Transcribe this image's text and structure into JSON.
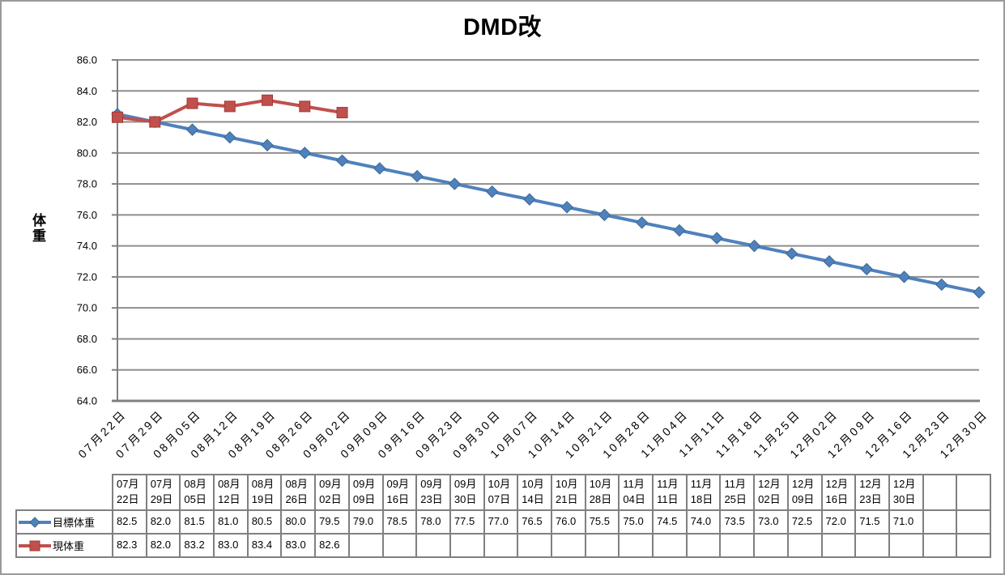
{
  "page": {
    "background": "#FFFFFF",
    "border_color": "#9A9A9A"
  },
  "chart_data": {
    "type": "line",
    "title": "DMD改",
    "ylabel": "体重",
    "xlabel": "",
    "ylim": [
      64.0,
      86.0
    ],
    "ytick_step": 2.0,
    "yticks": [
      "86.0",
      "84.0",
      "82.0",
      "80.0",
      "78.0",
      "76.0",
      "74.0",
      "72.0",
      "70.0",
      "68.0",
      "66.0",
      "64.0"
    ],
    "grid": true,
    "grid_color": "#8E8E8E",
    "axis_color": "#808080",
    "categories": [
      "07月22日",
      "07月29日",
      "08月05日",
      "08月12日",
      "08月19日",
      "08月26日",
      "09月02日",
      "09月09日",
      "09月16日",
      "09月23日",
      "09月30日",
      "10月07日",
      "10月14日",
      "10月21日",
      "10月28日",
      "11月04日",
      "11月11日",
      "11月18日",
      "11月25日",
      "12月02日",
      "12月09日",
      "12月16日",
      "12月23日",
      "12月30日"
    ],
    "series": [
      {
        "name": "目標体重",
        "marker": "diamond",
        "color": "#4F81BD",
        "marker_border": "#3A6793",
        "values": [
          82.5,
          82.0,
          81.5,
          81.0,
          80.5,
          80.0,
          79.5,
          79.0,
          78.5,
          78.0,
          77.5,
          77.0,
          76.5,
          76.0,
          75.5,
          75.0,
          74.5,
          74.0,
          73.5,
          73.0,
          72.5,
          72.0,
          71.5,
          71.0
        ]
      },
      {
        "name": "現体重",
        "marker": "square",
        "color": "#C0504D",
        "marker_border": "#9E3B38",
        "values": [
          82.3,
          82.0,
          83.2,
          83.0,
          83.4,
          83.0,
          82.6
        ]
      }
    ],
    "legend_position": "left-of-data-table"
  },
  "data_table": {
    "border_color": "#808080",
    "columns_total": 26,
    "extra_empty_columns": 2
  }
}
